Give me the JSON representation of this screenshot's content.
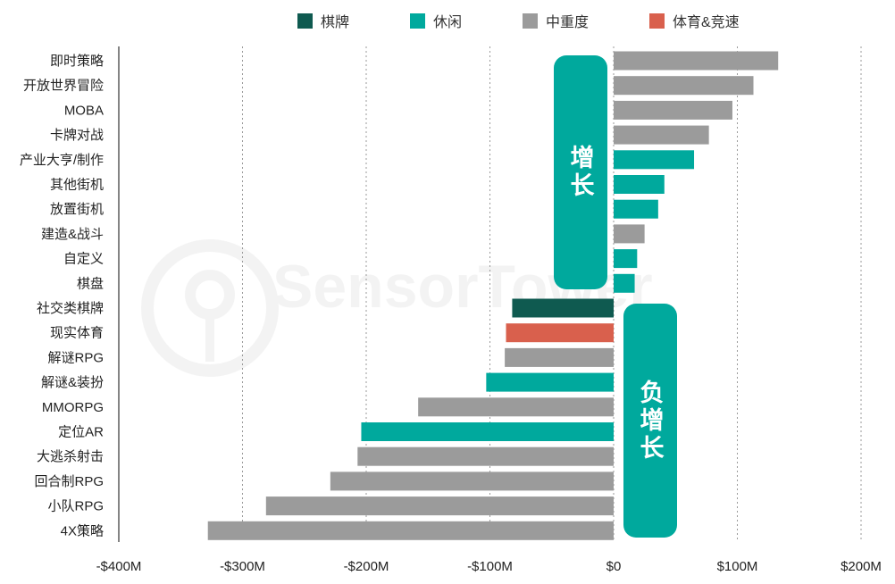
{
  "legend": [
    {
      "label": "棋牌",
      "color": "#0f5a50"
    },
    {
      "label": "休闲",
      "color": "#00a99d"
    },
    {
      "label": "中重度",
      "color": "#9b9b9b"
    },
    {
      "label": "体育&竞速",
      "color": "#d9604d"
    }
  ],
  "callouts": {
    "growth": "增长",
    "negative": "负增长",
    "color": "#00a99d"
  },
  "watermark": "SensorTower",
  "chart_data": {
    "type": "bar",
    "orientation": "horizontal",
    "categories": [
      "即时策略",
      "开放世界冒险",
      "MOBA",
      "卡牌对战",
      "产业大亨/制作",
      "其他街机",
      "放置街机",
      "建造&战斗",
      "自定义",
      "棋盘",
      "社交类棋牌",
      "现实体育",
      "解谜RPG",
      "解谜&装扮",
      "MMORPG",
      "定位AR",
      "大逃杀射击",
      "回合制RPG",
      "小队RPG",
      "4X策略"
    ],
    "values": [
      133,
      113,
      96,
      77,
      65,
      41,
      36,
      25,
      19,
      17,
      -82,
      -87,
      -88,
      -103,
      -158,
      -204,
      -207,
      -229,
      -281,
      -328
    ],
    "groups": [
      "中重度",
      "中重度",
      "中重度",
      "中重度",
      "休闲",
      "休闲",
      "休闲",
      "中重度",
      "休闲",
      "休闲",
      "棋牌",
      "体育&竞速",
      "中重度",
      "休闲",
      "中重度",
      "休闲",
      "中重度",
      "中重度",
      "中重度",
      "中重度"
    ],
    "xlim": [
      -400,
      200
    ],
    "xticks": [
      -400,
      -300,
      -200,
      -100,
      0,
      100,
      200
    ],
    "xtick_labels": [
      "-$400M",
      "-$300M",
      "-$200M",
      "-$100M",
      "$0",
      "$100M",
      "$200M"
    ],
    "grid": "vertical dotted",
    "legend_position": "top"
  }
}
